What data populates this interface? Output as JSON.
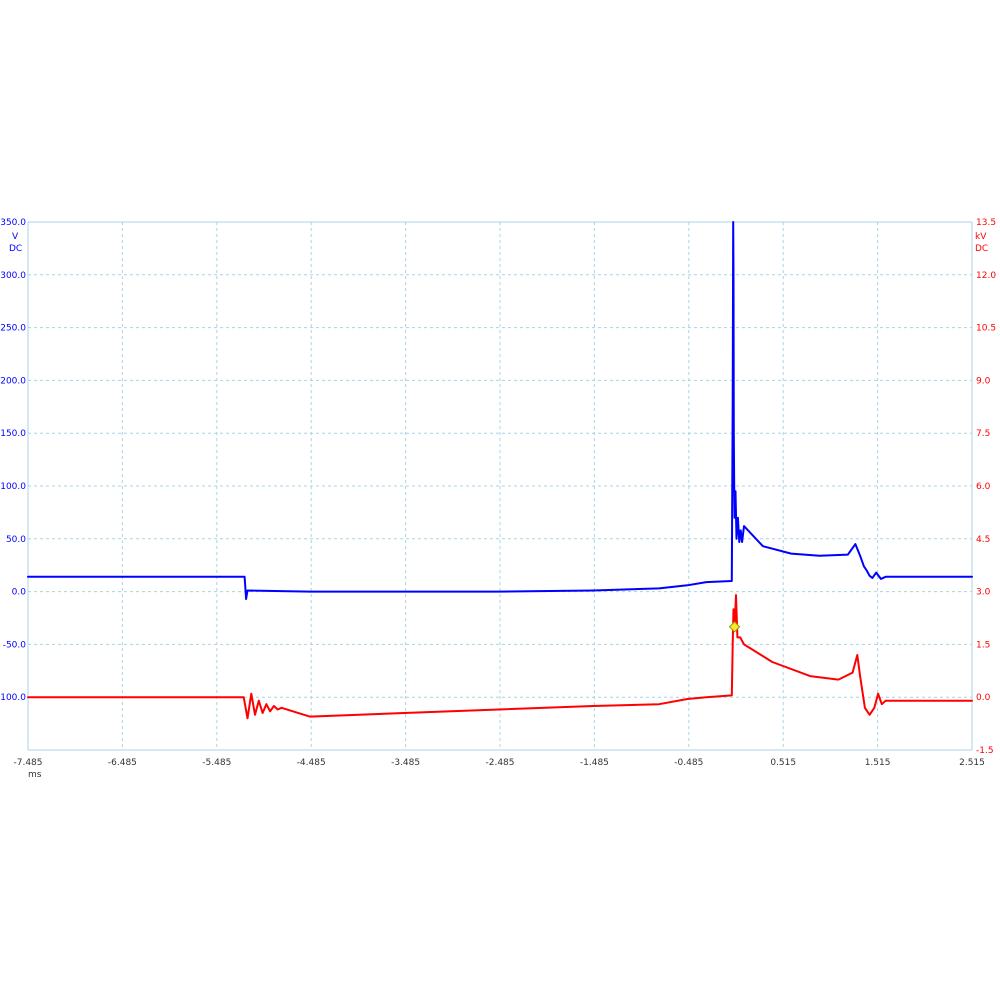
{
  "chart_data": {
    "type": "line",
    "title": "",
    "xlabel": "ms",
    "xlim": [
      -7.485,
      2.515
    ],
    "x_ticks": [
      "-7.485",
      "-6.485",
      "-5.485",
      "-4.485",
      "-3.485",
      "-2.485",
      "-1.485",
      "-0.485",
      "0.515",
      "1.515",
      "2.515"
    ],
    "grid": true,
    "y_left": {
      "unit": "V",
      "coupling": "DC",
      "ylim": [
        -150,
        350
      ],
      "ticks": [
        "350.0",
        "300.0",
        "250.0",
        "200.0",
        "150.0",
        "100.0",
        "50.0",
        "0.0",
        "-50.0",
        "-100.0"
      ],
      "color": "#0000ff"
    },
    "y_right": {
      "unit": "kV",
      "coupling": "DC",
      "ylim": [
        -1.5,
        13.5
      ],
      "ticks": [
        "13.5",
        "12.0",
        "10.5",
        "9.0",
        "7.5",
        "6.0",
        "4.5",
        "3.0",
        "1.5",
        "0.0",
        "-1.5"
      ],
      "color": "#ff0000"
    },
    "series": [
      {
        "axis": "left",
        "color": "#0000ff",
        "x": [
          -7.485,
          -5.2,
          -5.19,
          -5.175,
          -5.16,
          -4.5,
          -3.5,
          -2.5,
          -1.5,
          -0.8,
          -0.5,
          -0.3,
          -0.03,
          -0.02,
          -0.015,
          -0.012,
          -0.008,
          -0.004,
          0.0,
          0.01,
          0.02,
          0.035,
          0.05,
          0.065,
          0.08,
          0.1,
          0.3,
          0.6,
          0.9,
          1.2,
          1.28,
          1.33,
          1.37,
          1.4,
          1.43,
          1.46,
          1.5,
          1.55,
          1.6,
          1.7,
          2.0,
          2.515
        ],
        "y": [
          14,
          14,
          14,
          -7,
          1,
          0,
          0,
          0,
          1,
          3,
          6,
          9,
          10,
          180,
          350,
          300,
          150,
          100,
          70,
          95,
          50,
          70,
          47,
          58,
          47,
          62,
          43,
          36,
          34,
          35,
          45,
          34,
          24,
          20,
          15,
          13,
          18,
          12,
          14,
          14,
          14,
          14
        ]
      },
      {
        "axis": "right",
        "color": "#ff0000",
        "x": [
          -7.485,
          -5.2,
          -5.16,
          -5.12,
          -5.08,
          -5.04,
          -5.0,
          -4.96,
          -4.92,
          -4.88,
          -4.84,
          -4.8,
          -4.5,
          -3.5,
          -2.5,
          -1.5,
          -0.8,
          -0.5,
          -0.3,
          -0.03,
          -0.02,
          -0.012,
          0.0,
          0.015,
          0.03,
          0.06,
          0.1,
          0.4,
          0.8,
          1.1,
          1.25,
          1.3,
          1.33,
          1.38,
          1.43,
          1.48,
          1.52,
          1.56,
          1.6,
          1.7,
          2.0,
          2.515
        ],
        "y": [
          0.0,
          0.0,
          -0.6,
          0.1,
          -0.5,
          -0.1,
          -0.45,
          -0.2,
          -0.4,
          -0.25,
          -0.35,
          -0.3,
          -0.55,
          -0.45,
          -0.35,
          -0.25,
          -0.2,
          -0.05,
          0.0,
          0.05,
          1.5,
          2.5,
          2.0,
          2.9,
          1.7,
          1.7,
          1.5,
          1.0,
          0.6,
          0.5,
          0.7,
          1.2,
          0.6,
          -0.3,
          -0.5,
          -0.3,
          0.1,
          -0.2,
          -0.1,
          -0.1,
          -0.1,
          -0.1
        ]
      }
    ],
    "trigger_marker": {
      "x": 0.0,
      "y": 2.0,
      "axis": "right",
      "color": "#f2ea2a"
    }
  }
}
